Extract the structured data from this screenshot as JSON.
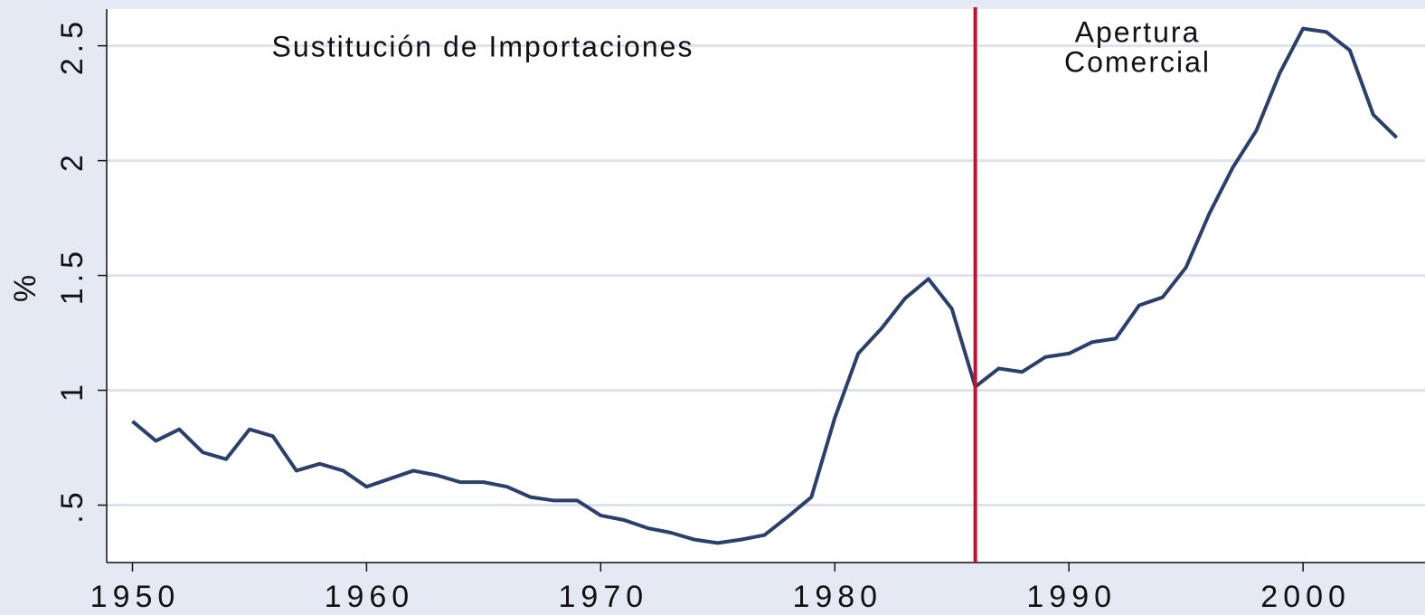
{
  "chart_data": {
    "type": "line",
    "ylabel": "%",
    "x": [
      1950,
      1951,
      1952,
      1953,
      1954,
      1955,
      1956,
      1957,
      1958,
      1959,
      1960,
      1961,
      1962,
      1963,
      1964,
      1965,
      1966,
      1967,
      1968,
      1969,
      1970,
      1971,
      1972,
      1973,
      1974,
      1975,
      1976,
      1977,
      1978,
      1979,
      1980,
      1981,
      1982,
      1983,
      1984,
      1985,
      1986,
      1987,
      1988,
      1989,
      1990,
      1991,
      1992,
      1993,
      1994,
      1995,
      1996,
      1997,
      1998,
      1999,
      2000,
      2001,
      2002,
      2003,
      2004
    ],
    "values": [
      0.865,
      0.78,
      0.83,
      0.73,
      0.7,
      0.83,
      0.8,
      0.65,
      0.68,
      0.65,
      0.58,
      0.615,
      0.65,
      0.63,
      0.6,
      0.6,
      0.58,
      0.535,
      0.52,
      0.52,
      0.455,
      0.435,
      0.4,
      0.38,
      0.35,
      0.335,
      0.35,
      0.37,
      0.45,
      0.535,
      0.88,
      1.16,
      1.27,
      1.4,
      1.485,
      1.355,
      1.015,
      1.095,
      1.08,
      1.145,
      1.16,
      1.21,
      1.225,
      1.37,
      1.405,
      1.535,
      1.77,
      1.97,
      2.13,
      2.38,
      2.575,
      2.56,
      2.48,
      2.2,
      2.1
    ],
    "color": "#2a3f6c",
    "xlim": [
      1948.9,
      2004.9
    ],
    "xticks": [
      1950,
      1960,
      1970,
      1980,
      1990,
      2000
    ],
    "ylim": [
      0.25,
      2.66
    ],
    "yticks": [
      {
        "value": 0.5,
        "label": ".5"
      },
      1,
      1.5,
      2,
      2.5
    ],
    "grid": true,
    "vline": {
      "value": 1986,
      "color": "#c8102e"
    },
    "annotations": {
      "left": "Sustitución de Importaciones",
      "right": [
        "Apertura",
        "Comercial"
      ]
    }
  }
}
